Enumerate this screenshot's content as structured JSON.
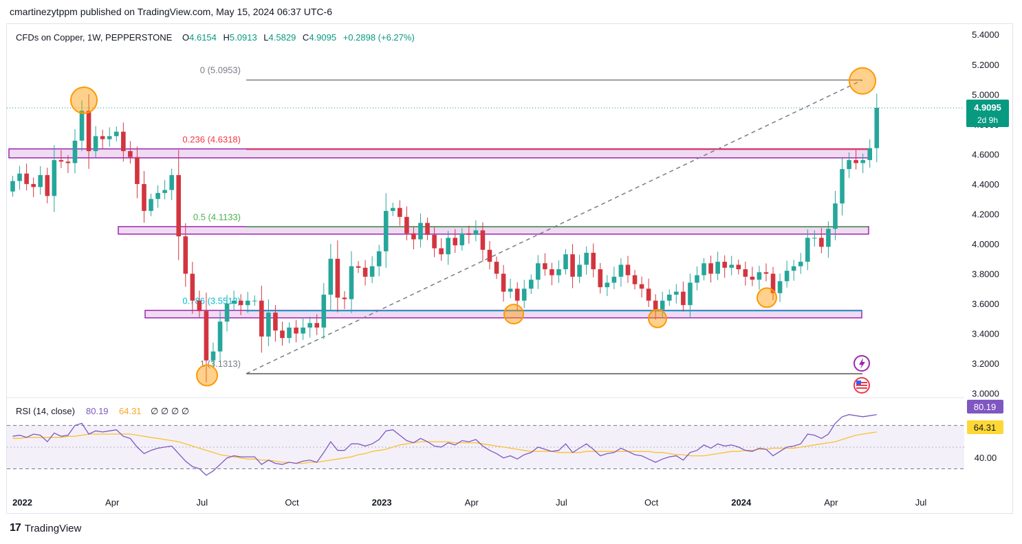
{
  "header": {
    "publisher_line": "cmartinezytppm published on TradingView.com, May 15, 2024 06:37 UTC-6"
  },
  "legend": {
    "symbol": "CFDs on Copper, 1W, PEPPERSTONE",
    "open_label": "O",
    "open": "4.6154",
    "high_label": "H",
    "high": "5.0913",
    "low_label": "L",
    "low": "4.5829",
    "close_label": "C",
    "close": "4.9095",
    "change": "+0.2898 (+6.27%)"
  },
  "price_tag": {
    "value": "4.9095",
    "countdown": "2d 9h"
  },
  "rsi": {
    "label": "RSI (14, close)",
    "rsi_value": "80.19",
    "ma_value": "64.31",
    "extras": "∅ ∅ ∅ ∅",
    "axis_label": "40.00"
  },
  "footer": {
    "brand": "TradingView"
  },
  "colors": {
    "up": "#26a69a",
    "down": "#d2353f",
    "band_fill": "#e1bee7",
    "band_stroke": "#9c27b0",
    "fib0": "#787b86",
    "fib236": "#f23645",
    "fib50": "#4caf50",
    "fib786": "#00bcd4",
    "rsi_line": "#7e57c2",
    "rsi_ma": "#fbc02d",
    "marker": "#ff9800"
  },
  "chart_data": {
    "type": "candlestick",
    "interval": "1W",
    "ylim": [
      2.98,
      5.47
    ],
    "y_ticks": [
      "5.4000",
      "5.2000",
      "5.0000",
      "4.8000",
      "4.6000",
      "4.4000",
      "4.2000",
      "4.0000",
      "3.8000",
      "3.6000",
      "3.4000",
      "3.2000",
      "3.0000"
    ],
    "x_ticks": [
      {
        "label": "2022",
        "week": 1,
        "bold": true
      },
      {
        "label": "Apr",
        "week": 14,
        "bold": false
      },
      {
        "label": "Jul",
        "week": 27,
        "bold": false
      },
      {
        "label": "Oct",
        "week": 40,
        "bold": false
      },
      {
        "label": "2023",
        "week": 53,
        "bold": true
      },
      {
        "label": "Apr",
        "week": 66,
        "bold": false
      },
      {
        "label": "Jul",
        "week": 79,
        "bold": false
      },
      {
        "label": "Oct",
        "week": 92,
        "bold": false
      },
      {
        "label": "2024",
        "week": 105,
        "bold": true
      },
      {
        "label": "Apr",
        "week": 118,
        "bold": false
      },
      {
        "label": "Jul",
        "week": 131,
        "bold": false
      }
    ],
    "close_series": [
      4.42,
      4.47,
      4.4,
      4.38,
      4.46,
      4.32,
      4.56,
      4.55,
      4.54,
      4.69,
      4.89,
      4.62,
      4.72,
      4.7,
      4.72,
      4.75,
      4.62,
      4.58,
      4.4,
      4.22,
      4.3,
      4.34,
      4.36,
      4.46,
      4.05,
      3.8,
      3.62,
      3.55,
      3.22,
      3.28,
      3.48,
      3.6,
      3.62,
      3.59,
      3.62,
      3.62,
      3.38,
      3.54,
      3.42,
      3.37,
      3.44,
      3.4,
      3.44,
      3.47,
      3.44,
      3.66,
      3.9,
      3.64,
      3.63,
      3.85,
      3.84,
      3.78,
      3.85,
      3.95,
      4.22,
      4.24,
      4.18,
      4.07,
      4.03,
      4.14,
      4.06,
      3.97,
      3.93,
      4.04,
      3.99,
      4.07,
      4.06,
      4.09,
      3.96,
      3.88,
      3.8,
      3.68,
      3.7,
      3.62,
      3.7,
      3.76,
      3.87,
      3.83,
      3.79,
      3.83,
      3.93,
      3.78,
      3.86,
      3.94,
      3.83,
      3.71,
      3.74,
      3.78,
      3.86,
      3.79,
      3.73,
      3.7,
      3.62,
      3.56,
      3.62,
      3.66,
      3.68,
      3.59,
      3.74,
      3.79,
      3.87,
      3.8,
      3.88,
      3.84,
      3.86,
      3.83,
      3.78,
      3.76,
      3.81,
      3.8,
      3.67,
      3.75,
      3.82,
      3.85,
      3.88,
      4.04,
      4.04,
      3.98,
      4.1,
      4.27,
      4.5,
      4.56,
      4.54,
      4.56,
      4.64,
      4.91
    ],
    "annotations": {
      "fib_levels": [
        {
          "ratio": "0",
          "price": 5.0953,
          "label": "0 (5.0953)"
        },
        {
          "ratio": "0.236",
          "price": 4.6318,
          "label": "0.236 (4.6318)"
        },
        {
          "ratio": "0.5",
          "price": 4.1133,
          "label": "0.5 (4.1133)"
        },
        {
          "ratio": "0.786",
          "price": 3.5513,
          "label": "0.786 (3.5513)"
        },
        {
          "ratio": "1",
          "price": 3.1313,
          "label": "1 (3.1313)"
        }
      ],
      "zones": [
        {
          "top": 4.635,
          "bottom": 4.575
        },
        {
          "top": 4.115,
          "bottom": 4.065
        },
        {
          "top": 3.555,
          "bottom": 3.505
        }
      ]
    },
    "rsi_series": [
      60,
      61,
      59,
      62,
      61,
      55,
      63,
      60,
      61,
      70,
      72,
      62,
      65,
      64,
      65,
      66,
      60,
      58,
      50,
      44,
      47,
      49,
      50,
      51,
      44,
      37,
      32,
      30,
      24,
      28,
      34,
      40,
      42,
      41,
      41,
      41,
      34,
      38,
      35,
      34,
      36,
      35,
      37,
      38,
      36,
      45,
      55,
      47,
      47,
      53,
      53,
      51,
      53,
      57,
      65,
      66,
      61,
      56,
      54,
      58,
      55,
      51,
      50,
      54,
      52,
      56,
      55,
      57,
      51,
      47,
      44,
      40,
      42,
      39,
      43,
      45,
      50,
      48,
      46,
      47,
      53,
      45,
      49,
      53,
      48,
      42,
      44,
      45,
      49,
      46,
      43,
      42,
      39,
      36,
      39,
      41,
      42,
      38,
      45,
      47,
      52,
      49,
      53,
      51,
      52,
      50,
      47,
      46,
      49,
      48,
      42,
      46,
      50,
      51,
      53,
      62,
      61,
      58,
      62,
      72,
      78,
      80,
      79,
      78,
      79,
      80
    ],
    "rsi_ma_series": [
      58,
      58,
      59,
      59,
      59,
      59,
      59,
      59,
      60,
      60,
      61,
      62,
      62,
      62,
      62,
      62,
      62,
      62,
      61,
      60,
      59,
      58,
      57,
      56,
      55,
      53,
      51,
      49,
      47,
      45,
      43,
      42,
      41,
      40,
      39,
      39,
      38,
      38,
      37,
      36,
      36,
      35,
      35,
      36,
      36,
      37,
      38,
      39,
      40,
      41,
      43,
      44,
      46,
      47,
      48,
      50,
      52,
      53,
      54,
      55,
      55,
      55,
      55,
      55,
      54,
      54,
      54,
      54,
      53,
      52,
      51,
      50,
      49,
      48,
      47,
      46,
      46,
      46,
      46,
      45,
      45,
      45,
      45,
      46,
      46,
      46,
      46,
      46,
      46,
      46,
      46,
      46,
      46,
      45,
      45,
      44,
      43,
      43,
      42,
      42,
      42,
      43,
      44,
      45,
      46,
      46,
      47,
      47,
      48,
      48,
      49,
      49,
      49,
      49,
      50,
      51,
      52,
      53,
      54,
      55,
      57,
      59,
      61,
      62,
      63,
      64
    ],
    "rsi_levels": [
      70,
      30
    ]
  }
}
